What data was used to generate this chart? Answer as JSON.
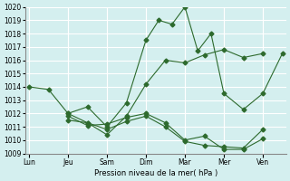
{
  "title": "",
  "xlabel": "Pression niveau de la mer( hPa )",
  "background_color": "#d4efef",
  "grid_color": "#ffffff",
  "line_color": "#2d6a2d",
  "ylim": [
    1009,
    1020
  ],
  "yticks": [
    1009,
    1010,
    1011,
    1012,
    1013,
    1014,
    1015,
    1016,
    1017,
    1018,
    1019,
    1020
  ],
  "xtick_labels": [
    "Lun",
    "Jeu",
    "Sam",
    "Dim",
    "Mar",
    "Mer",
    "Ven"
  ],
  "xtick_positions": [
    0,
    1,
    2,
    3,
    4,
    5,
    6
  ],
  "series": [
    {
      "x": [
        0,
        0.5,
        1,
        1.5,
        2,
        2.5,
        3,
        3.33,
        3.67,
        4,
        4.33,
        4.67,
        5,
        5.5,
        6,
        6.5
      ],
      "y": [
        1014.0,
        1013.8,
        1012.0,
        1012.5,
        1011.0,
        1012.8,
        1017.5,
        1019.0,
        1018.7,
        1020.0,
        1016.7,
        1018.0,
        1013.5,
        1012.3,
        1013.5,
        1016.5
      ]
    },
    {
      "x": [
        1,
        1.5,
        2,
        2.5,
        3,
        3.5,
        4,
        4.5,
        5,
        5.5,
        6
      ],
      "y": [
        1012.0,
        1011.3,
        1010.4,
        1011.8,
        1014.2,
        1016.0,
        1015.8,
        1016.4,
        1016.8,
        1016.2,
        1016.5
      ]
    },
    {
      "x": [
        1,
        1.5,
        2,
        2.5,
        3,
        3.5,
        4,
        4.5,
        5,
        5.5,
        6
      ],
      "y": [
        1011.8,
        1011.1,
        1011.2,
        1011.7,
        1012.0,
        1011.3,
        1010.0,
        1010.3,
        1009.3,
        1009.3,
        1010.1
      ]
    },
    {
      "x": [
        1,
        1.5,
        2,
        2.5,
        3,
        3.5,
        4,
        4.5,
        5,
        5.5,
        6
      ],
      "y": [
        1011.5,
        1011.3,
        1010.8,
        1011.4,
        1011.8,
        1011.0,
        1009.9,
        1009.6,
        1009.5,
        1009.4,
        1010.8
      ]
    }
  ]
}
